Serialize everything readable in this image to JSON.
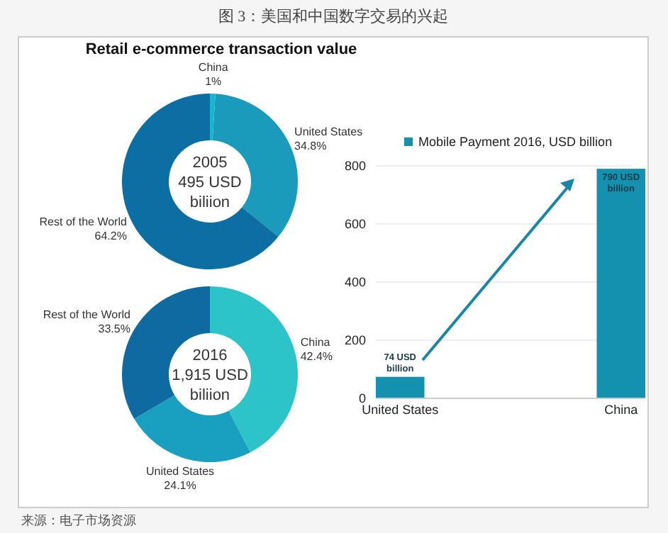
{
  "chart_data": [
    {
      "type": "donut",
      "title": "图 3：美国和中国数字交易的兴起",
      "subtitle": "Retail e-commerce transaction value",
      "annotations": [
        "2005",
        "495 USD",
        "biliion"
      ],
      "categories": [
        "China",
        "United States",
        "Rest of the World"
      ],
      "values": [
        1,
        34.8,
        64.2
      ],
      "colors": [
        "#1cb4cc",
        "#1a9bbb",
        "#0d6ea3"
      ],
      "value_labels": [
        "1%",
        "34.8%",
        "64.2%"
      ]
    },
    {
      "type": "donut",
      "annotations": [
        "2016",
        "1,915 USD",
        "biliion"
      ],
      "categories": [
        "China",
        "United States",
        "Rest of the World"
      ],
      "values": [
        42.4,
        24.1,
        33.5
      ],
      "colors": [
        "#2cc3c9",
        "#199fc0",
        "#0e6aa0"
      ],
      "value_labels": [
        "42.4%",
        "24.1%",
        "33.5%"
      ]
    },
    {
      "type": "bar",
      "categories": [
        "United States",
        "China"
      ],
      "series": [
        {
          "name": "Mobile Payment 2016, USD billion",
          "color": "#1591b0",
          "values": [
            74,
            790
          ]
        }
      ],
      "value_labels": [
        "74 USD billion",
        "790 USD billion"
      ],
      "ylim": [
        0,
        800
      ],
      "yticks": [
        0,
        200,
        400,
        600,
        800
      ],
      "grid": "y",
      "legend": "top",
      "annotations": [
        "来源：电子市场资源"
      ]
    }
  ]
}
